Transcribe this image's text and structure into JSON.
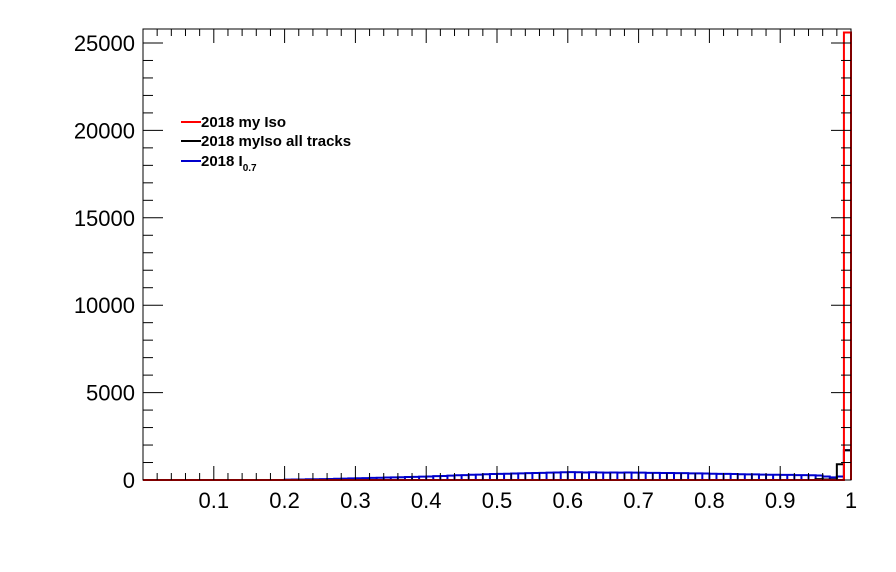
{
  "chart_data": {
    "type": "line",
    "title": "",
    "xlabel": "",
    "ylabel": "",
    "xlim": [
      0,
      1
    ],
    "ylim": [
      0,
      25800
    ],
    "grid": false,
    "legend_position": "top-left",
    "x_ticks": [
      0.1,
      0.2,
      0.3,
      0.4,
      0.5,
      0.6,
      0.7,
      0.8,
      0.9,
      1
    ],
    "x_tick_labels": [
      "0.1",
      "0.2",
      "0.3",
      "0.4",
      "0.5",
      "0.6",
      "0.7",
      "0.8",
      "0.9",
      "1"
    ],
    "y_ticks": [
      0,
      5000,
      10000,
      15000,
      20000,
      25000
    ],
    "y_tick_labels": [
      "0",
      "5000",
      "10000",
      "15000",
      "20000",
      "25000"
    ],
    "series": [
      {
        "name": "2018 my Iso",
        "color": "#ff0000",
        "bin_width": 0.01,
        "bins": [
          {
            "x": 0.99,
            "y": 25600
          }
        ]
      },
      {
        "name": "2018 myIso all tracks",
        "color": "#000000",
        "bin_width": 0.01,
        "bins": [
          {
            "x": 0.95,
            "y": 50
          },
          {
            "x": 0.96,
            "y": 30
          },
          {
            "x": 0.97,
            "y": 30
          },
          {
            "x": 0.98,
            "y": 900
          },
          {
            "x": 0.99,
            "y": 1700
          }
        ]
      },
      {
        "name": "2018 I_{0.7}",
        "label_main": "2018 I",
        "label_sub": "0.7",
        "color": "#0000cc",
        "bin_width": 0.01,
        "bins": [
          {
            "x": 0.2,
            "y": 20
          },
          {
            "x": 0.21,
            "y": 25
          },
          {
            "x": 0.22,
            "y": 30
          },
          {
            "x": 0.23,
            "y": 40
          },
          {
            "x": 0.24,
            "y": 45
          },
          {
            "x": 0.25,
            "y": 50
          },
          {
            "x": 0.26,
            "y": 60
          },
          {
            "x": 0.27,
            "y": 70
          },
          {
            "x": 0.28,
            "y": 80
          },
          {
            "x": 0.29,
            "y": 90
          },
          {
            "x": 0.3,
            "y": 100
          },
          {
            "x": 0.31,
            "y": 110
          },
          {
            "x": 0.32,
            "y": 120
          },
          {
            "x": 0.33,
            "y": 130
          },
          {
            "x": 0.34,
            "y": 140
          },
          {
            "x": 0.35,
            "y": 150
          },
          {
            "x": 0.36,
            "y": 160
          },
          {
            "x": 0.37,
            "y": 170
          },
          {
            "x": 0.38,
            "y": 180
          },
          {
            "x": 0.39,
            "y": 190
          },
          {
            "x": 0.4,
            "y": 200
          },
          {
            "x": 0.41,
            "y": 220
          },
          {
            "x": 0.42,
            "y": 230
          },
          {
            "x": 0.43,
            "y": 250
          },
          {
            "x": 0.44,
            "y": 270
          },
          {
            "x": 0.45,
            "y": 280
          },
          {
            "x": 0.46,
            "y": 300
          },
          {
            "x": 0.47,
            "y": 310
          },
          {
            "x": 0.48,
            "y": 330
          },
          {
            "x": 0.49,
            "y": 340
          },
          {
            "x": 0.5,
            "y": 350
          },
          {
            "x": 0.51,
            "y": 360
          },
          {
            "x": 0.52,
            "y": 370
          },
          {
            "x": 0.53,
            "y": 380
          },
          {
            "x": 0.54,
            "y": 390
          },
          {
            "x": 0.55,
            "y": 400
          },
          {
            "x": 0.56,
            "y": 410
          },
          {
            "x": 0.57,
            "y": 420
          },
          {
            "x": 0.58,
            "y": 430
          },
          {
            "x": 0.59,
            "y": 440
          },
          {
            "x": 0.6,
            "y": 450
          },
          {
            "x": 0.61,
            "y": 440
          },
          {
            "x": 0.62,
            "y": 430
          },
          {
            "x": 0.63,
            "y": 440
          },
          {
            "x": 0.64,
            "y": 430
          },
          {
            "x": 0.65,
            "y": 420
          },
          {
            "x": 0.66,
            "y": 430
          },
          {
            "x": 0.67,
            "y": 420
          },
          {
            "x": 0.68,
            "y": 430
          },
          {
            "x": 0.69,
            "y": 420
          },
          {
            "x": 0.7,
            "y": 420
          },
          {
            "x": 0.71,
            "y": 410
          },
          {
            "x": 0.72,
            "y": 410
          },
          {
            "x": 0.73,
            "y": 400
          },
          {
            "x": 0.74,
            "y": 400
          },
          {
            "x": 0.75,
            "y": 390
          },
          {
            "x": 0.76,
            "y": 390
          },
          {
            "x": 0.77,
            "y": 380
          },
          {
            "x": 0.78,
            "y": 380
          },
          {
            "x": 0.79,
            "y": 370
          },
          {
            "x": 0.8,
            "y": 360
          },
          {
            "x": 0.81,
            "y": 350
          },
          {
            "x": 0.82,
            "y": 350
          },
          {
            "x": 0.83,
            "y": 340
          },
          {
            "x": 0.84,
            "y": 330
          },
          {
            "x": 0.85,
            "y": 320
          },
          {
            "x": 0.86,
            "y": 320
          },
          {
            "x": 0.87,
            "y": 310
          },
          {
            "x": 0.88,
            "y": 300
          },
          {
            "x": 0.89,
            "y": 300
          },
          {
            "x": 0.9,
            "y": 290
          },
          {
            "x": 0.91,
            "y": 290
          },
          {
            "x": 0.92,
            "y": 280
          },
          {
            "x": 0.93,
            "y": 280
          },
          {
            "x": 0.94,
            "y": 270
          },
          {
            "x": 0.95,
            "y": 260
          },
          {
            "x": 0.96,
            "y": 200
          },
          {
            "x": 0.97,
            "y": 150
          },
          {
            "x": 0.98,
            "y": 200
          },
          {
            "x": 0.99,
            "y": 1700
          }
        ]
      }
    ]
  }
}
